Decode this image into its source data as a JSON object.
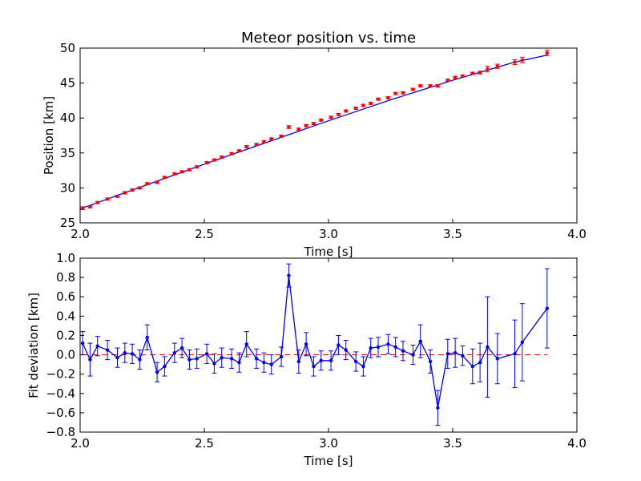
{
  "chart_data": [
    {
      "type": "scatter",
      "title": "Meteor position vs. time",
      "xlabel": "Time [s]",
      "ylabel": "Position [km]",
      "xlim": [
        2.0,
        4.0
      ],
      "ylim": [
        25,
        50
      ],
      "xticks": [
        "2.0",
        "2.5",
        "3.0",
        "3.5",
        "4.0"
      ],
      "yticks": [
        "25",
        "30",
        "35",
        "40",
        "45",
        "50"
      ],
      "grid": false,
      "series": [
        {
          "kind": "errorbar-points",
          "color": "#ff0000",
          "x": [
            2.01,
            2.04,
            2.07,
            2.11,
            2.15,
            2.18,
            2.21,
            2.24,
            2.27,
            2.31,
            2.34,
            2.38,
            2.41,
            2.44,
            2.47,
            2.51,
            2.54,
            2.57,
            2.61,
            2.64,
            2.67,
            2.71,
            2.74,
            2.77,
            2.81,
            2.84,
            2.88,
            2.91,
            2.94,
            2.97,
            3.01,
            3.04,
            3.07,
            3.11,
            3.14,
            3.17,
            3.2,
            3.24,
            3.27,
            3.3,
            3.34,
            3.37,
            3.41,
            3.44,
            3.48,
            3.51,
            3.54,
            3.58,
            3.61,
            3.64,
            3.68,
            3.75,
            3.78,
            3.88
          ],
          "y": [
            27.1,
            27.3,
            27.9,
            28.4,
            28.8,
            29.3,
            29.7,
            30.0,
            30.6,
            30.8,
            31.5,
            32.0,
            32.3,
            32.6,
            33.0,
            33.6,
            34.0,
            34.4,
            34.9,
            35.3,
            35.9,
            36.2,
            36.6,
            37.0,
            37.4,
            38.7,
            38.4,
            38.9,
            39.2,
            39.7,
            40.1,
            40.5,
            41.0,
            41.4,
            41.8,
            42.1,
            42.7,
            42.9,
            43.5,
            43.6,
            44.1,
            44.6,
            44.6,
            44.6,
            45.4,
            45.8,
            46.0,
            46.4,
            46.5,
            47.0,
            47.4,
            48.0,
            48.3,
            49.3
          ],
          "yerr": [
            0.2,
            0.15,
            0.15,
            0.15,
            0.15,
            0.15,
            0.15,
            0.15,
            0.15,
            0.15,
            0.15,
            0.15,
            0.15,
            0.15,
            0.15,
            0.15,
            0.15,
            0.15,
            0.15,
            0.15,
            0.15,
            0.15,
            0.15,
            0.15,
            0.15,
            0.2,
            0.15,
            0.15,
            0.15,
            0.15,
            0.15,
            0.15,
            0.15,
            0.15,
            0.15,
            0.15,
            0.15,
            0.15,
            0.15,
            0.15,
            0.15,
            0.15,
            0.15,
            0.2,
            0.15,
            0.15,
            0.15,
            0.15,
            0.2,
            0.4,
            0.3,
            0.35,
            0.4,
            0.4
          ]
        },
        {
          "kind": "fit-line",
          "color": "#0000ff",
          "x": [
            2.0,
            2.25,
            2.5,
            2.75,
            3.0,
            3.25,
            3.5,
            3.75,
            3.88
          ],
          "y": [
            27.0,
            30.2,
            33.4,
            36.5,
            39.6,
            42.6,
            45.4,
            48.0,
            49.0
          ]
        }
      ]
    },
    {
      "type": "line",
      "xlabel": "Time [s]",
      "ylabel": "Fit deviation [km]",
      "xlim": [
        2.0,
        4.0
      ],
      "ylim": [
        -0.8,
        1.0
      ],
      "xticks": [
        "2.0",
        "2.5",
        "3.0",
        "3.5",
        "4.0"
      ],
      "yticks": [
        "−0.8",
        "−0.6",
        "−0.4",
        "−0.2",
        "0.0",
        "0.2",
        "0.4",
        "0.6",
        "0.8",
        "1.0"
      ],
      "ytick_values": [
        -0.8,
        -0.6,
        -0.4,
        -0.2,
        0.0,
        0.2,
        0.4,
        0.6,
        0.8,
        1.0
      ],
      "grid": false,
      "reference_line": {
        "y": 0.0,
        "color": "#ff0000",
        "style": "dashed"
      },
      "series": [
        {
          "kind": "errorbar-line",
          "color": "#0000ff",
          "x": [
            2.01,
            2.04,
            2.07,
            2.11,
            2.15,
            2.18,
            2.21,
            2.24,
            2.27,
            2.31,
            2.34,
            2.38,
            2.41,
            2.44,
            2.47,
            2.51,
            2.54,
            2.57,
            2.61,
            2.64,
            2.67,
            2.71,
            2.74,
            2.77,
            2.81,
            2.84,
            2.88,
            2.91,
            2.94,
            2.97,
            3.01,
            3.04,
            3.07,
            3.11,
            3.14,
            3.17,
            3.2,
            3.24,
            3.27,
            3.3,
            3.34,
            3.37,
            3.41,
            3.44,
            3.48,
            3.51,
            3.54,
            3.58,
            3.61,
            3.64,
            3.68,
            3.75,
            3.78,
            3.88
          ],
          "y": [
            0.12,
            -0.05,
            0.09,
            0.05,
            -0.03,
            0.02,
            0.01,
            -0.05,
            0.18,
            -0.18,
            -0.12,
            0.02,
            0.07,
            -0.05,
            -0.04,
            0.01,
            -0.09,
            -0.03,
            -0.04,
            -0.08,
            0.11,
            -0.04,
            -0.08,
            -0.1,
            -0.02,
            0.82,
            -0.07,
            0.11,
            -0.12,
            -0.06,
            -0.06,
            0.1,
            0.05,
            -0.07,
            -0.12,
            0.07,
            0.08,
            0.11,
            0.08,
            0.04,
            0.0,
            0.14,
            -0.07,
            -0.55,
            0.01,
            0.02,
            -0.01,
            -0.12,
            -0.08,
            0.08,
            -0.04,
            0.01,
            0.13,
            0.48
          ],
          "yerr": [
            0.12,
            0.17,
            0.1,
            0.1,
            0.1,
            0.1,
            0.1,
            0.1,
            0.13,
            0.1,
            0.1,
            0.1,
            0.1,
            0.1,
            0.1,
            0.1,
            0.1,
            0.1,
            0.1,
            0.1,
            0.13,
            0.1,
            0.1,
            0.1,
            0.1,
            0.12,
            0.12,
            0.12,
            0.1,
            0.1,
            0.1,
            0.1,
            0.1,
            0.1,
            0.1,
            0.1,
            0.1,
            0.1,
            0.1,
            0.1,
            0.1,
            0.17,
            0.12,
            0.18,
            0.15,
            0.15,
            0.1,
            0.18,
            0.2,
            0.52,
            0.26,
            0.35,
            0.4,
            0.41
          ]
        }
      ]
    }
  ]
}
